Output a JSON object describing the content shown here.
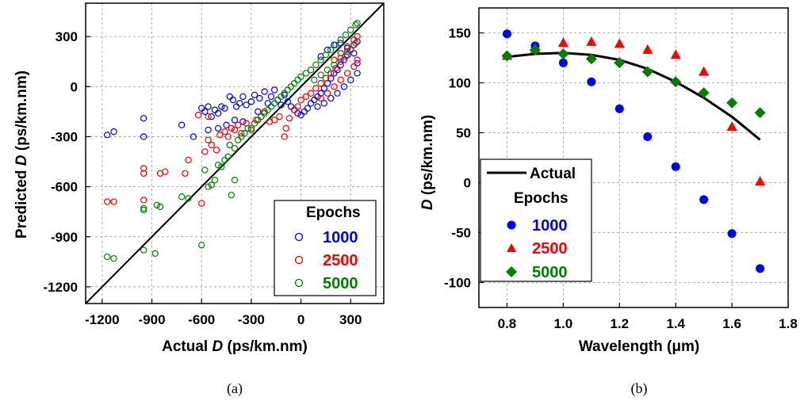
{
  "colors": {
    "epochs_1000": "#0000ff",
    "epochs_2500": "#ff0000",
    "epochs_5000": "#008000",
    "actual": "#000000"
  },
  "chart_data": [
    {
      "id": "a",
      "type": "scatter",
      "caption": "(a)",
      "xlabel_prefix": "Actual ",
      "xlabel_var": "D",
      "xlabel_suffix": " (ps/km.nm)",
      "ylabel_prefix": "Predicted ",
      "ylabel_var": "D",
      "ylabel_suffix": " (ps/km.nm)",
      "xlim": [
        -1300,
        500
      ],
      "ylim": [
        -1300,
        500
      ],
      "xticks": [
        -1200,
        -900,
        -600,
        -300,
        0,
        300
      ],
      "yticks": [
        -1200,
        -900,
        -600,
        -300,
        0,
        300
      ],
      "xtick_labels": [
        "-1200",
        "-900",
        "-600",
        "-300",
        "0",
        "300"
      ],
      "ytick_labels": [
        "-1200",
        "-900",
        "-600",
        "-300",
        "0",
        "300"
      ],
      "grid": true,
      "reference_line": "y = x",
      "legend": {
        "title": "Epochs",
        "placement": "bottom-right",
        "entries": [
          {
            "label": "1000",
            "marker": "open-circle",
            "color": "#0000ff"
          },
          {
            "label": "2500",
            "marker": "open-circle",
            "color": "#ff0000"
          },
          {
            "label": "5000",
            "marker": "open-circle",
            "color": "#008000"
          }
        ]
      },
      "series": [
        {
          "name": "1000",
          "points": [
            [
              -1170,
              -290
            ],
            [
              -1130,
              -270
            ],
            [
              -950,
              -190
            ],
            [
              -950,
              -300
            ],
            [
              -720,
              -230
            ],
            [
              -650,
              -300
            ],
            [
              -600,
              -130
            ],
            [
              -580,
              -150
            ],
            [
              -560,
              -120
            ],
            [
              -540,
              -180
            ],
            [
              -520,
              -140
            ],
            [
              -500,
              -160
            ],
            [
              -480,
              -120
            ],
            [
              -460,
              -130
            ],
            [
              -430,
              -60
            ],
            [
              -410,
              -80
            ],
            [
              -390,
              -120
            ],
            [
              -370,
              -100
            ],
            [
              -350,
              -60
            ],
            [
              -330,
              -110
            ],
            [
              -300,
              -90
            ],
            [
              -280,
              -50
            ],
            [
              -250,
              -70
            ],
            [
              -220,
              -30
            ],
            [
              -200,
              -100
            ],
            [
              -180,
              -60
            ],
            [
              -160,
              -20
            ],
            [
              -140,
              -80
            ],
            [
              -120,
              -110
            ],
            [
              -100,
              -50
            ],
            [
              -80,
              -90
            ],
            [
              -60,
              -120
            ],
            [
              -40,
              -140
            ],
            [
              -20,
              -160
            ],
            [
              0,
              -170
            ],
            [
              20,
              -150
            ],
            [
              40,
              -130
            ],
            [
              60,
              -100
            ],
            [
              80,
              -80
            ],
            [
              100,
              -60
            ],
            [
              120,
              -40
            ],
            [
              140,
              -10
            ],
            [
              160,
              20
            ],
            [
              180,
              50
            ],
            [
              200,
              80
            ],
            [
              220,
              100
            ],
            [
              240,
              130
            ],
            [
              260,
              160
            ],
            [
              280,
              190
            ],
            [
              300,
              220
            ],
            [
              320,
              250
            ],
            [
              340,
              270
            ],
            [
              100,
              -120
            ],
            [
              140,
              -100
            ],
            [
              180,
              -70
            ],
            [
              220,
              -40
            ],
            [
              260,
              0
            ],
            [
              300,
              40
            ],
            [
              340,
              80
            ],
            [
              120,
              180
            ],
            [
              160,
              220
            ],
            [
              200,
              250
            ],
            [
              240,
              260
            ],
            [
              280,
              230
            ],
            [
              320,
              200
            ],
            [
              340,
              140
            ],
            [
              -560,
              -260
            ],
            [
              -500,
              -250
            ],
            [
              -450,
              -230
            ],
            [
              -400,
              -200
            ],
            [
              -350,
              -210
            ],
            [
              -260,
              -150
            ]
          ]
        },
        {
          "name": "2500",
          "points": [
            [
              -1170,
              -690
            ],
            [
              -1130,
              -690
            ],
            [
              -950,
              -490
            ],
            [
              -950,
              -520
            ],
            [
              -950,
              -680
            ],
            [
              -850,
              -520
            ],
            [
              -820,
              -510
            ],
            [
              -700,
              -520
            ],
            [
              -680,
              -440
            ],
            [
              -600,
              -700
            ],
            [
              -580,
              -390
            ],
            [
              -560,
              -320
            ],
            [
              -540,
              -350
            ],
            [
              -510,
              -380
            ],
            [
              -490,
              -290
            ],
            [
              -460,
              -270
            ],
            [
              -440,
              -300
            ],
            [
              -420,
              -250
            ],
            [
              -400,
              -260
            ],
            [
              -380,
              -230
            ],
            [
              -360,
              -280
            ],
            [
              -330,
              -220
            ],
            [
              -300,
              -250
            ],
            [
              -270,
              -200
            ],
            [
              -240,
              -180
            ],
            [
              -220,
              -150
            ],
            [
              -190,
              -210
            ],
            [
              -160,
              -200
            ],
            [
              -130,
              -180
            ],
            [
              -100,
              -300
            ],
            [
              -90,
              -250
            ],
            [
              -70,
              -190
            ],
            [
              -40,
              -140
            ],
            [
              -20,
              -120
            ],
            [
              0,
              -80
            ],
            [
              30,
              -60
            ],
            [
              60,
              -40
            ],
            [
              90,
              -10
            ],
            [
              120,
              20
            ],
            [
              150,
              50
            ],
            [
              180,
              80
            ],
            [
              210,
              110
            ],
            [
              240,
              150
            ],
            [
              270,
              180
            ],
            [
              300,
              220
            ],
            [
              330,
              260
            ],
            [
              340,
              300
            ],
            [
              120,
              -70
            ],
            [
              160,
              -40
            ],
            [
              200,
              0
            ],
            [
              240,
              40
            ],
            [
              280,
              80
            ],
            [
              320,
              120
            ],
            [
              340,
              160
            ],
            [
              200,
              160
            ],
            [
              240,
              200
            ],
            [
              280,
              240
            ],
            [
              320,
              280
            ],
            [
              -620,
              -170
            ],
            [
              -560,
              -180
            ]
          ]
        },
        {
          "name": "5000",
          "points": [
            [
              -1170,
              -1020
            ],
            [
              -1130,
              -1030
            ],
            [
              -950,
              -730
            ],
            [
              -950,
              -740
            ],
            [
              -950,
              -980
            ],
            [
              -880,
              -1000
            ],
            [
              -870,
              -710
            ],
            [
              -850,
              -720
            ],
            [
              -720,
              -660
            ],
            [
              -680,
              -670
            ],
            [
              -600,
              -950
            ],
            [
              -580,
              -500
            ],
            [
              -560,
              -600
            ],
            [
              -540,
              -590
            ],
            [
              -520,
              -560
            ],
            [
              -500,
              -470
            ],
            [
              -480,
              -480
            ],
            [
              -460,
              -440
            ],
            [
              -440,
              -420
            ],
            [
              -420,
              -650
            ],
            [
              -400,
              -370
            ],
            [
              -380,
              -320
            ],
            [
              -360,
              -300
            ],
            [
              -340,
              -280
            ],
            [
              -320,
              -250
            ],
            [
              -300,
              -260
            ],
            [
              -280,
              -220
            ],
            [
              -260,
              -200
            ],
            [
              -240,
              -180
            ],
            [
              -220,
              -160
            ],
            [
              -200,
              -140
            ],
            [
              -180,
              -120
            ],
            [
              -160,
              -100
            ],
            [
              -140,
              -80
            ],
            [
              -120,
              -60
            ],
            [
              -100,
              -40
            ],
            [
              -80,
              -20
            ],
            [
              -60,
              0
            ],
            [
              -40,
              20
            ],
            [
              -20,
              40
            ],
            [
              0,
              60
            ],
            [
              30,
              80
            ],
            [
              60,
              100
            ],
            [
              90,
              130
            ],
            [
              120,
              160
            ],
            [
              150,
              190
            ],
            [
              180,
              220
            ],
            [
              210,
              250
            ],
            [
              240,
              280
            ],
            [
              270,
              310
            ],
            [
              300,
              340
            ],
            [
              330,
              370
            ],
            [
              340,
              380
            ],
            [
              80,
              40
            ],
            [
              120,
              70
            ],
            [
              160,
              100
            ],
            [
              200,
              130
            ],
            [
              240,
              170
            ],
            [
              280,
              210
            ],
            [
              320,
              250
            ],
            [
              -430,
              -350
            ],
            [
              -400,
              -560
            ]
          ]
        }
      ]
    },
    {
      "id": "b",
      "type": "line",
      "caption": "(b)",
      "xlabel": "Wavelength (μm)",
      "ylabel_var": "D",
      "ylabel_suffix": " (ps/km.nm)",
      "xlim": [
        0.7,
        1.8
      ],
      "ylim": [
        -125,
        175
      ],
      "xticks": [
        0.8,
        1.0,
        1.2,
        1.4,
        1.6,
        1.8
      ],
      "yticks": [
        -100,
        -50,
        0,
        50,
        100,
        150
      ],
      "xtick_labels": [
        "0.8",
        "1.0",
        "1.2",
        "1.4",
        "1.6",
        "1.8"
      ],
      "ytick_labels": [
        "-100",
        "-50",
        "0",
        "50",
        "100",
        "150"
      ],
      "grid": true,
      "legend": {
        "placement": "bottom-left",
        "actual_label": "Actual",
        "title": "Epochs",
        "entries": [
          {
            "label": "1000",
            "marker": "circle",
            "color": "#0000ff"
          },
          {
            "label": "2500",
            "marker": "triangle",
            "color": "#ff0000"
          },
          {
            "label": "5000",
            "marker": "diamond",
            "color": "#008000"
          }
        ]
      },
      "actual_curve": {
        "name": "Actual",
        "x": [
          0.8,
          0.9,
          1.0,
          1.1,
          1.2,
          1.3,
          1.4,
          1.5,
          1.6,
          1.7
        ],
        "y": [
          126,
          129,
          130,
          128,
          123,
          114,
          101,
          85,
          66,
          43
        ]
      },
      "series": [
        {
          "name": "1000",
          "marker": "circle",
          "x": [
            0.8,
            0.9,
            1.0,
            1.1,
            1.2,
            1.3,
            1.4,
            1.5,
            1.6,
            1.7
          ],
          "y": [
            149,
            137,
            120,
            101,
            74,
            46,
            16,
            -17,
            -51,
            -86
          ]
        },
        {
          "name": "2500",
          "marker": "triangle",
          "x": [
            0.8,
            0.9,
            1.0,
            1.1,
            1.2,
            1.3,
            1.4,
            1.5,
            1.6,
            1.7
          ],
          "y": [
            127,
            134,
            140,
            141,
            139,
            133,
            128,
            111,
            56,
            1
          ]
        },
        {
          "name": "5000",
          "marker": "diamond",
          "x": [
            0.8,
            0.9,
            1.0,
            1.1,
            1.2,
            1.3,
            1.4,
            1.5,
            1.6,
            1.7
          ],
          "y": [
            127,
            133,
            129,
            124,
            120,
            111,
            101,
            90,
            80,
            70
          ]
        }
      ]
    }
  ]
}
